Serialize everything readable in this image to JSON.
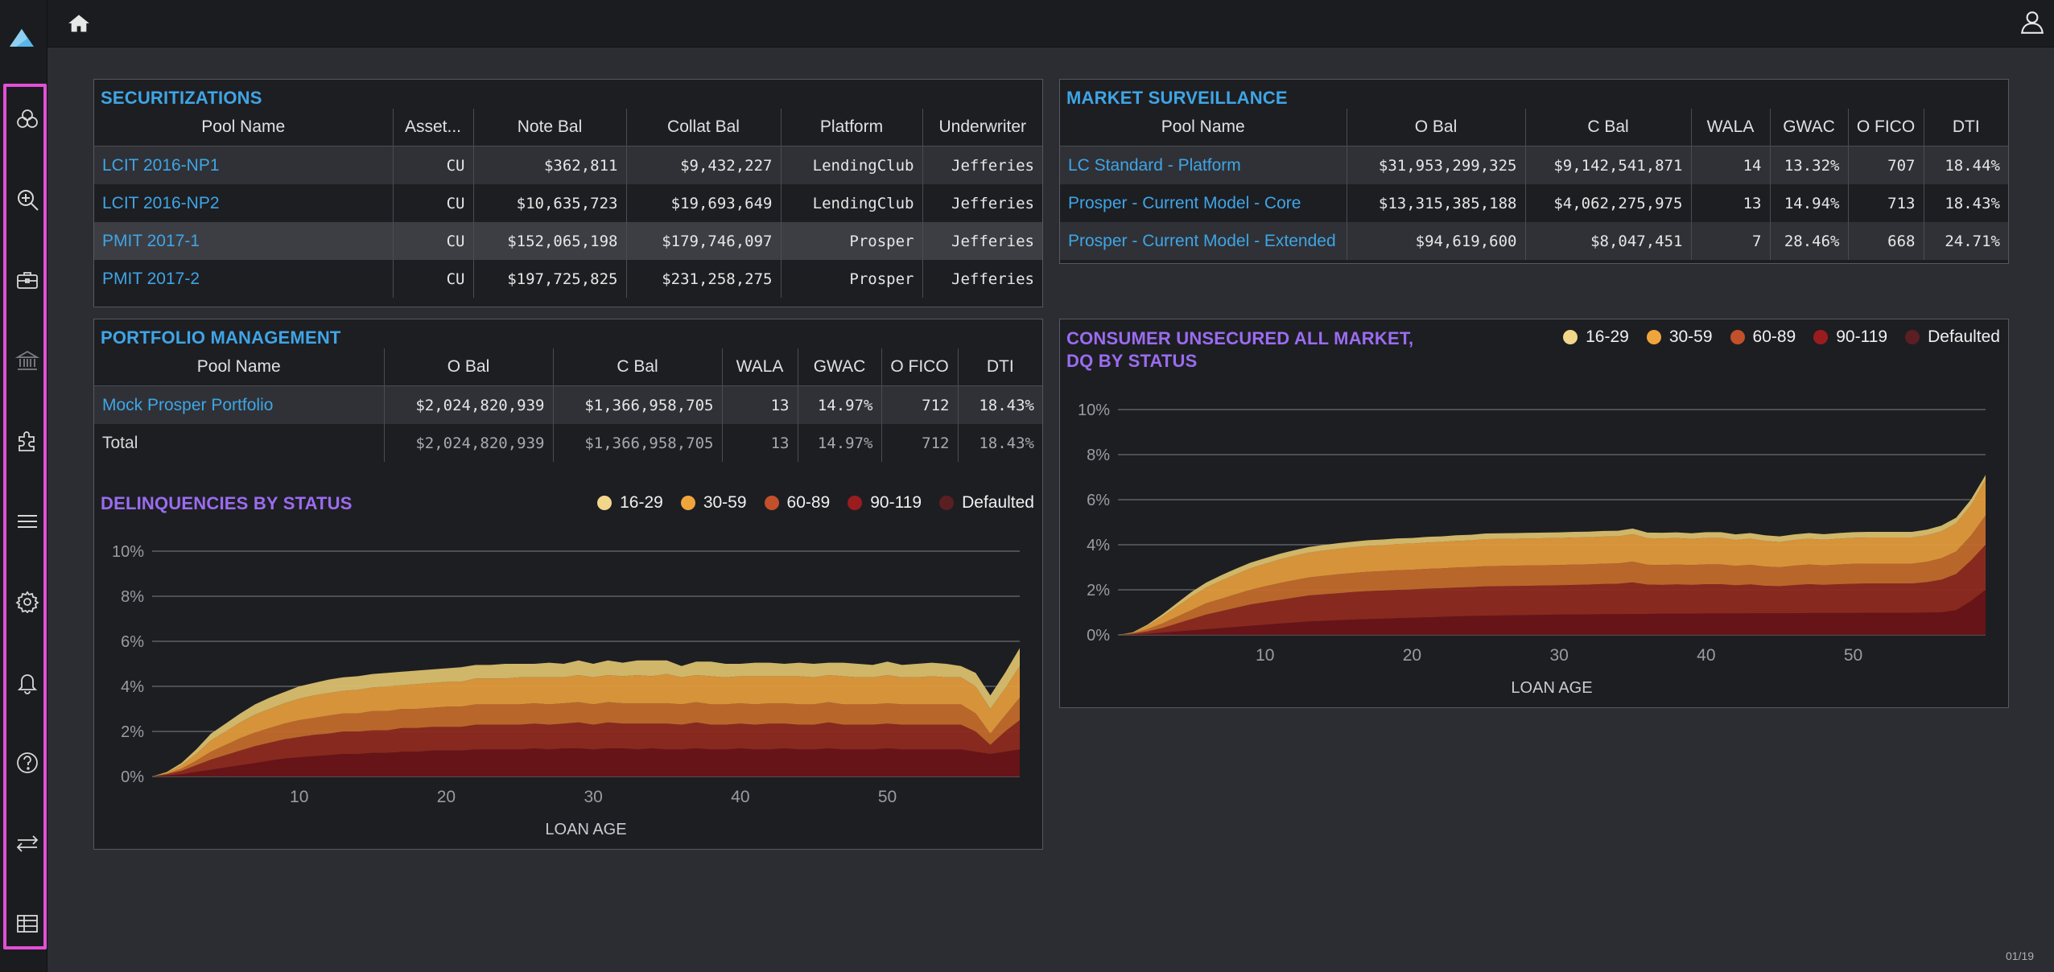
{
  "nav": {
    "items": [
      {
        "name": "nav-pools",
        "icon": "circles-icon"
      },
      {
        "name": "nav-search",
        "icon": "zoom-in-icon"
      },
      {
        "name": "nav-portfolio",
        "icon": "briefcase-icon"
      },
      {
        "name": "nav-institution",
        "icon": "bank-icon"
      },
      {
        "name": "nav-plugins",
        "icon": "puzzle-icon"
      },
      {
        "name": "nav-list",
        "icon": "menu-icon"
      },
      {
        "name": "nav-settings",
        "icon": "gear-icon"
      },
      {
        "name": "nav-alerts",
        "icon": "bell-icon"
      },
      {
        "name": "nav-help",
        "icon": "help-icon"
      },
      {
        "name": "nav-transfer",
        "icon": "swap-icon"
      },
      {
        "name": "nav-table",
        "icon": "table-icon"
      }
    ]
  },
  "colors": {
    "accent_blue": "#3fa5e6",
    "accent_purple": "#9b6cf0",
    "nav_highlight": "#e24fd6",
    "s16_29": "#e9c97a",
    "s30_59": "#e59a3b",
    "s60_89": "#b04a28",
    "s90_119": "#7e1a1c",
    "defaulted": "#5b1f22"
  },
  "securitizations": {
    "title": "SECURITIZATIONS",
    "columns": [
      "Pool Name",
      "Asset...",
      "Note Bal",
      "Collat Bal",
      "Platform",
      "Underwriter"
    ],
    "rows": [
      [
        "LCIT 2016-NP1",
        "CU",
        "$362,811",
        "$9,432,227",
        "LendingClub",
        "Jefferies"
      ],
      [
        "LCIT 2016-NP2",
        "CU",
        "$10,635,723",
        "$19,693,649",
        "LendingClub",
        "Jefferies"
      ],
      [
        "PMIT 2017-1",
        "CU",
        "$152,065,198",
        "$179,746,097",
        "Prosper",
        "Jefferies"
      ],
      [
        "PMIT 2017-2",
        "CU",
        "$197,725,825",
        "$231,258,275",
        "Prosper",
        "Jefferies"
      ]
    ]
  },
  "market": {
    "title": "MARKET SURVEILLANCE",
    "columns": [
      "Pool Name",
      "O Bal",
      "C Bal",
      "WALA",
      "GWAC",
      "O FICO",
      "DTI"
    ],
    "rows": [
      [
        "LC Standard - Platform",
        "$31,953,299,325",
        "$9,142,541,871",
        "14",
        "13.32%",
        "707",
        "18.44%"
      ],
      [
        "Prosper - Current Model - Core",
        "$13,315,385,188",
        "$4,062,275,975",
        "13",
        "14.94%",
        "713",
        "18.43%"
      ],
      [
        "Prosper - Current Model - Extended",
        "$94,619,600",
        "$8,047,451",
        "7",
        "28.46%",
        "668",
        "24.71%"
      ]
    ]
  },
  "portfolio": {
    "title": "PORTFOLIO MANAGEMENT",
    "columns": [
      "Pool Name",
      "O Bal",
      "C Bal",
      "WALA",
      "GWAC",
      "O FICO",
      "DTI"
    ],
    "rows": [
      [
        "Mock Prosper Portfolio",
        "$2,024,820,939",
        "$1,366,958,705",
        "13",
        "14.97%",
        "712",
        "18.43%"
      ]
    ],
    "total": [
      "Total",
      "$2,024,820,939",
      "$1,366,958,705",
      "13",
      "14.97%",
      "712",
      "18.43%"
    ]
  },
  "legend": [
    "16-29",
    "30-59",
    "60-89",
    "90-119",
    "Defaulted"
  ],
  "chart_data": [
    {
      "type": "area",
      "title": "DELINQUENCIES BY STATUS",
      "xlabel": "LOAN AGE",
      "ylabel": "",
      "x_ticks": [
        10,
        20,
        30,
        40,
        50
      ],
      "y_ticks": [
        "0%",
        "2%",
        "4%",
        "6%",
        "8%",
        "10%"
      ],
      "xlim": [
        0,
        59
      ],
      "ylim": [
        0,
        10
      ],
      "stacked": true,
      "grid": true,
      "legend_position": "top-right",
      "x": [
        1,
        2,
        3,
        4,
        5,
        6,
        7,
        8,
        9,
        10,
        11,
        12,
        13,
        14,
        15,
        16,
        17,
        18,
        19,
        20,
        21,
        22,
        23,
        24,
        25,
        26,
        27,
        28,
        29,
        30,
        31,
        32,
        33,
        34,
        35,
        36,
        37,
        38,
        39,
        40,
        41,
        42,
        43,
        44,
        45,
        46,
        47,
        48,
        49,
        50,
        51,
        52,
        53,
        54,
        55,
        56,
        57,
        58,
        59
      ],
      "series": [
        {
          "name": "Defaulted",
          "values": [
            0.05,
            0.1,
            0.2,
            0.3,
            0.4,
            0.5,
            0.6,
            0.7,
            0.8,
            0.85,
            0.9,
            0.95,
            1.0,
            1.0,
            1.05,
            1.05,
            1.1,
            1.1,
            1.15,
            1.15,
            1.15,
            1.2,
            1.2,
            1.2,
            1.2,
            1.25,
            1.2,
            1.25,
            1.25,
            1.2,
            1.25,
            1.25,
            1.2,
            1.25,
            1.2,
            1.2,
            1.25,
            1.2,
            1.2,
            1.25,
            1.2,
            1.2,
            1.25,
            1.2,
            1.2,
            1.25,
            1.2,
            1.2,
            1.2,
            1.25,
            1.2,
            1.2,
            1.2,
            1.2,
            1.2,
            1.1,
            1.0,
            1.1,
            1.2
          ]
        },
        {
          "name": "90-119",
          "values": [
            0.05,
            0.15,
            0.3,
            0.45,
            0.55,
            0.65,
            0.75,
            0.8,
            0.85,
            0.9,
            0.95,
            0.95,
            1.0,
            1.0,
            1.0,
            1.0,
            1.05,
            1.05,
            1.05,
            1.05,
            1.05,
            1.1,
            1.1,
            1.1,
            1.1,
            1.1,
            1.1,
            1.1,
            1.15,
            1.1,
            1.15,
            1.1,
            1.15,
            1.1,
            1.15,
            1.1,
            1.15,
            1.1,
            1.1,
            1.1,
            1.1,
            1.15,
            1.1,
            1.1,
            1.1,
            1.15,
            1.1,
            1.1,
            1.1,
            1.1,
            1.1,
            1.1,
            1.1,
            1.1,
            1.1,
            0.9,
            0.4,
            0.9,
            1.3
          ]
        },
        {
          "name": "60-89",
          "values": [
            0.02,
            0.1,
            0.2,
            0.35,
            0.45,
            0.55,
            0.6,
            0.65,
            0.7,
            0.75,
            0.75,
            0.8,
            0.8,
            0.8,
            0.85,
            0.85,
            0.85,
            0.85,
            0.85,
            0.9,
            0.9,
            0.9,
            0.9,
            0.9,
            0.9,
            0.9,
            0.9,
            0.9,
            0.9,
            0.9,
            0.9,
            0.9,
            0.9,
            0.9,
            0.9,
            0.9,
            0.9,
            0.9,
            0.9,
            0.9,
            0.9,
            0.9,
            0.9,
            0.9,
            0.9,
            0.9,
            0.9,
            0.9,
            0.9,
            0.9,
            0.9,
            0.9,
            0.9,
            0.9,
            0.9,
            0.8,
            0.5,
            0.7,
            1.0
          ]
        },
        {
          "name": "30-59",
          "values": [
            0.05,
            0.15,
            0.3,
            0.5,
            0.6,
            0.7,
            0.8,
            0.85,
            0.9,
            0.95,
            1.0,
            1.0,
            1.0,
            1.05,
            1.05,
            1.1,
            1.05,
            1.1,
            1.1,
            1.1,
            1.1,
            1.15,
            1.15,
            1.15,
            1.2,
            1.15,
            1.2,
            1.15,
            1.2,
            1.2,
            1.2,
            1.2,
            1.25,
            1.2,
            1.3,
            1.2,
            1.2,
            1.25,
            1.2,
            1.2,
            1.25,
            1.2,
            1.2,
            1.25,
            1.2,
            1.2,
            1.25,
            1.2,
            1.2,
            1.25,
            1.2,
            1.2,
            1.25,
            1.2,
            1.2,
            1.2,
            1.1,
            1.2,
            1.4
          ]
        },
        {
          "name": "16-29",
          "values": [
            0.03,
            0.1,
            0.2,
            0.3,
            0.35,
            0.4,
            0.45,
            0.5,
            0.5,
            0.55,
            0.55,
            0.6,
            0.6,
            0.6,
            0.6,
            0.6,
            0.6,
            0.6,
            0.6,
            0.6,
            0.65,
            0.6,
            0.6,
            0.65,
            0.6,
            0.6,
            0.65,
            0.6,
            0.65,
            0.6,
            0.65,
            0.6,
            0.65,
            0.7,
            0.6,
            0.5,
            0.6,
            0.65,
            0.6,
            0.55,
            0.6,
            0.6,
            0.55,
            0.6,
            0.6,
            0.55,
            0.6,
            0.6,
            0.55,
            0.6,
            0.55,
            0.6,
            0.6,
            0.6,
            0.5,
            0.6,
            0.6,
            0.7,
            0.8
          ]
        }
      ]
    },
    {
      "type": "area",
      "title": "CONSUMER UNSECURED ALL MARKET, DQ BY STATUS",
      "title_lines": [
        "CONSUMER UNSECURED ALL MARKET,",
        "DQ BY STATUS"
      ],
      "xlabel": "LOAN AGE",
      "ylabel": "",
      "x_ticks": [
        10,
        20,
        30,
        40,
        50
      ],
      "y_ticks": [
        "0%",
        "2%",
        "4%",
        "6%",
        "8%",
        "10%"
      ],
      "xlim": [
        0,
        59
      ],
      "ylim": [
        0,
        10
      ],
      "stacked": true,
      "grid": true,
      "legend_position": "top-right",
      "x": [
        1,
        2,
        3,
        4,
        5,
        6,
        7,
        8,
        9,
        10,
        11,
        12,
        13,
        14,
        15,
        16,
        17,
        18,
        19,
        20,
        21,
        22,
        23,
        24,
        25,
        26,
        27,
        28,
        29,
        30,
        31,
        32,
        33,
        34,
        35,
        36,
        37,
        38,
        39,
        40,
        41,
        42,
        43,
        44,
        45,
        46,
        47,
        48,
        49,
        50,
        51,
        52,
        53,
        54,
        55,
        56,
        57,
        58,
        59
      ],
      "series": [
        {
          "name": "Defaulted",
          "values": [
            0.02,
            0.05,
            0.1,
            0.15,
            0.2,
            0.25,
            0.3,
            0.35,
            0.4,
            0.45,
            0.5,
            0.55,
            0.6,
            0.62,
            0.65,
            0.68,
            0.7,
            0.72,
            0.74,
            0.76,
            0.78,
            0.8,
            0.82,
            0.84,
            0.85,
            0.86,
            0.87,
            0.88,
            0.89,
            0.9,
            0.9,
            0.91,
            0.92,
            0.92,
            0.93,
            0.93,
            0.94,
            0.94,
            0.94,
            0.95,
            0.95,
            0.95,
            0.96,
            0.96,
            0.96,
            0.96,
            0.97,
            0.97,
            0.97,
            0.97,
            0.98,
            0.98,
            0.98,
            0.98,
            0.99,
            1.0,
            1.1,
            1.5,
            2.0
          ]
        },
        {
          "name": "90-119",
          "values": [
            0.03,
            0.1,
            0.2,
            0.35,
            0.5,
            0.65,
            0.75,
            0.85,
            0.95,
            1.0,
            1.05,
            1.1,
            1.15,
            1.18,
            1.2,
            1.22,
            1.24,
            1.25,
            1.26,
            1.26,
            1.27,
            1.27,
            1.28,
            1.28,
            1.3,
            1.3,
            1.3,
            1.3,
            1.3,
            1.3,
            1.32,
            1.32,
            1.34,
            1.35,
            1.4,
            1.3,
            1.28,
            1.3,
            1.28,
            1.3,
            1.3,
            1.25,
            1.28,
            1.22,
            1.2,
            1.25,
            1.28,
            1.25,
            1.28,
            1.3,
            1.3,
            1.3,
            1.3,
            1.3,
            1.35,
            1.45,
            1.6,
            1.8,
            2.0
          ]
        },
        {
          "name": "60-89",
          "values": [
            0.02,
            0.1,
            0.2,
            0.3,
            0.4,
            0.5,
            0.55,
            0.6,
            0.65,
            0.7,
            0.75,
            0.78,
            0.8,
            0.82,
            0.84,
            0.85,
            0.86,
            0.86,
            0.87,
            0.87,
            0.88,
            0.88,
            0.89,
            0.89,
            0.9,
            0.9,
            0.9,
            0.9,
            0.9,
            0.9,
            0.9,
            0.9,
            0.9,
            0.9,
            0.92,
            0.88,
            0.88,
            0.88,
            0.88,
            0.88,
            0.88,
            0.86,
            0.87,
            0.85,
            0.84,
            0.86,
            0.87,
            0.86,
            0.87,
            0.88,
            0.88,
            0.88,
            0.88,
            0.88,
            0.9,
            0.95,
            1.0,
            1.1,
            1.3
          ]
        },
        {
          "name": "30-59",
          "values": [
            0.03,
            0.15,
            0.3,
            0.45,
            0.6,
            0.7,
            0.8,
            0.88,
            0.95,
            1.0,
            1.05,
            1.08,
            1.1,
            1.12,
            1.13,
            1.14,
            1.15,
            1.15,
            1.16,
            1.16,
            1.17,
            1.17,
            1.18,
            1.18,
            1.2,
            1.2,
            1.2,
            1.2,
            1.2,
            1.2,
            1.2,
            1.2,
            1.2,
            1.2,
            1.22,
            1.18,
            1.18,
            1.18,
            1.16,
            1.18,
            1.18,
            1.15,
            1.16,
            1.14,
            1.12,
            1.14,
            1.15,
            1.14,
            1.15,
            1.16,
            1.16,
            1.16,
            1.16,
            1.16,
            1.18,
            1.2,
            1.25,
            1.35,
            1.6
          ]
        },
        {
          "name": "16-29",
          "values": [
            0.01,
            0.05,
            0.1,
            0.15,
            0.2,
            0.22,
            0.24,
            0.25,
            0.25,
            0.25,
            0.25,
            0.25,
            0.25,
            0.25,
            0.25,
            0.25,
            0.25,
            0.25,
            0.25,
            0.25,
            0.25,
            0.25,
            0.25,
            0.25,
            0.25,
            0.25,
            0.25,
            0.25,
            0.25,
            0.25,
            0.25,
            0.25,
            0.25,
            0.25,
            0.25,
            0.25,
            0.25,
            0.25,
            0.25,
            0.25,
            0.25,
            0.25,
            0.25,
            0.25,
            0.25,
            0.25,
            0.25,
            0.25,
            0.25,
            0.25,
            0.25,
            0.25,
            0.25,
            0.25,
            0.25,
            0.25,
            0.25,
            0.25,
            0.2
          ]
        }
      ]
    }
  ],
  "footer": {
    "page": "01/19"
  }
}
